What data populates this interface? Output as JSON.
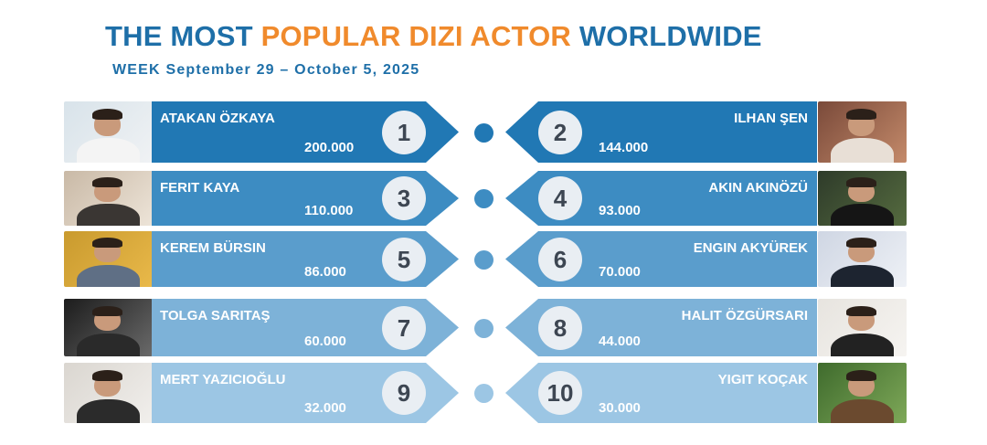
{
  "header": {
    "title_part1": "THE MOST ",
    "title_part2": "POPULAR DIZI ACTOR",
    "title_part3": " WORLDWIDE",
    "week": "WEEK September 29 – October 5, 2025"
  },
  "colors": {
    "title_blue": "#1e6fa8",
    "title_orange": "#f08a2c",
    "row_shades": [
      "#2178b4",
      "#3d8cc2",
      "#5a9dcc",
      "#7db2d8",
      "#9cc6e4"
    ],
    "rank_circle": "#e9eef3"
  },
  "rankings": [
    {
      "rank": "1",
      "name": "ATAKAN ÖZKAYA",
      "score": "200.000",
      "icon": "actor-portrait"
    },
    {
      "rank": "2",
      "name": "ILHAN ŞEN",
      "score": "144.000",
      "icon": "actor-portrait"
    },
    {
      "rank": "3",
      "name": "FERIT KAYA",
      "score": "110.000",
      "icon": "actor-portrait"
    },
    {
      "rank": "4",
      "name": "AKIN AKINÖZÜ",
      "score": "93.000",
      "icon": "actor-portrait"
    },
    {
      "rank": "5",
      "name": "KEREM BÜRSIN",
      "score": "86.000",
      "icon": "actor-portrait"
    },
    {
      "rank": "6",
      "name": "ENGIN AKYÜREK",
      "score": "70.000",
      "icon": "actor-portrait"
    },
    {
      "rank": "7",
      "name": "TOLGA SARITAŞ",
      "score": "60.000",
      "icon": "actor-portrait"
    },
    {
      "rank": "8",
      "name": "HALIT ÖZGÜRSARI",
      "score": "44.000",
      "icon": "actor-portrait"
    },
    {
      "rank": "9",
      "name": "MERT YAZICIOĞLU",
      "score": "32.000",
      "icon": "actor-portrait"
    },
    {
      "rank": "10",
      "name": "YIGIT KOÇAK",
      "score": "30.000",
      "icon": "actor-portrait"
    }
  ]
}
